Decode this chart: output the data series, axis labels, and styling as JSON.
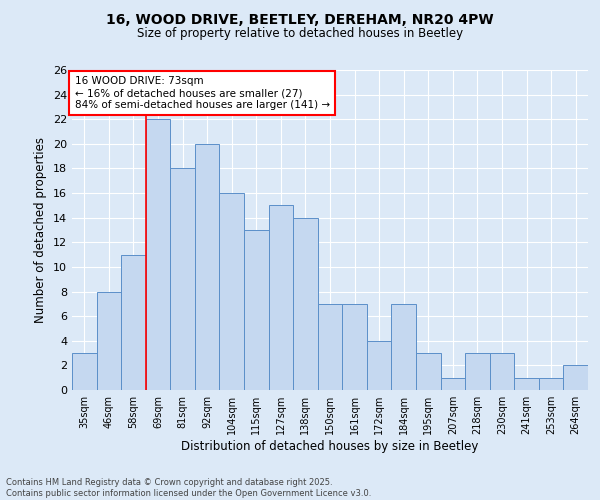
{
  "title1": "16, WOOD DRIVE, BEETLEY, DEREHAM, NR20 4PW",
  "title2": "Size of property relative to detached houses in Beetley",
  "xlabel": "Distribution of detached houses by size in Beetley",
  "ylabel": "Number of detached properties",
  "categories": [
    "35sqm",
    "46sqm",
    "58sqm",
    "69sqm",
    "81sqm",
    "92sqm",
    "104sqm",
    "115sqm",
    "127sqm",
    "138sqm",
    "150sqm",
    "161sqm",
    "172sqm",
    "184sqm",
    "195sqm",
    "207sqm",
    "218sqm",
    "230sqm",
    "241sqm",
    "253sqm",
    "264sqm"
  ],
  "values": [
    3,
    8,
    11,
    22,
    18,
    20,
    16,
    13,
    15,
    14,
    7,
    7,
    4,
    7,
    3,
    1,
    3,
    3,
    1,
    1,
    2
  ],
  "bar_color": "#c5d8f0",
  "bar_edge_color": "#5b8fc9",
  "background_color": "#dce9f7",
  "grid_color": "#ffffff",
  "red_line_x": 3.0,
  "annotation_title": "16 WOOD DRIVE: 73sqm",
  "annotation_line1": "← 16% of detached houses are smaller (27)",
  "annotation_line2": "84% of semi-detached houses are larger (141) →",
  "ylim": [
    0,
    26
  ],
  "yticks": [
    0,
    2,
    4,
    6,
    8,
    10,
    12,
    14,
    16,
    18,
    20,
    22,
    24,
    26
  ],
  "footer1": "Contains HM Land Registry data © Crown copyright and database right 2025.",
  "footer2": "Contains public sector information licensed under the Open Government Licence v3.0."
}
